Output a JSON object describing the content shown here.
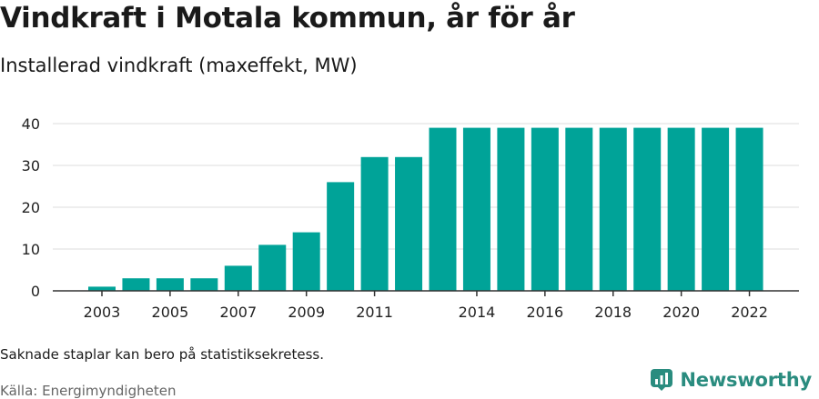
{
  "header": {
    "title": "Vindkraft i Motala kommun, år för år",
    "subtitle": "Installerad vindkraft (maxeffekt, MW)"
  },
  "footer": {
    "note": "Saknade staplar kan bero på statistiksekretess.",
    "source": "Källa: Energimyndigheten",
    "brand": "Newsworthy"
  },
  "colors": {
    "bar": "#00a398",
    "brand": "#2a8c7f",
    "grid": "#dddddd",
    "axis": "#333333"
  },
  "chart_data": {
    "type": "bar",
    "categories": [
      "2003",
      "2004",
      "2005",
      "2006",
      "2007",
      "2008",
      "2009",
      "2010",
      "2011",
      "2012",
      "2013",
      "2014",
      "2015",
      "2016",
      "2017",
      "2018",
      "2019",
      "2020",
      "2021",
      "2022"
    ],
    "values": [
      1,
      3,
      3,
      3,
      6,
      11,
      14,
      26,
      32,
      32,
      39,
      39,
      39,
      39,
      39,
      39,
      39,
      39,
      39,
      39
    ],
    "x_tick_labels": [
      "2003",
      "2005",
      "2007",
      "2009",
      "2011",
      "2014",
      "2016",
      "2018",
      "2020",
      "2022"
    ],
    "y_ticks": [
      0,
      10,
      20,
      30,
      40
    ],
    "ylim": [
      0,
      40
    ],
    "grid": true,
    "xlabel": "",
    "ylabel": ""
  }
}
